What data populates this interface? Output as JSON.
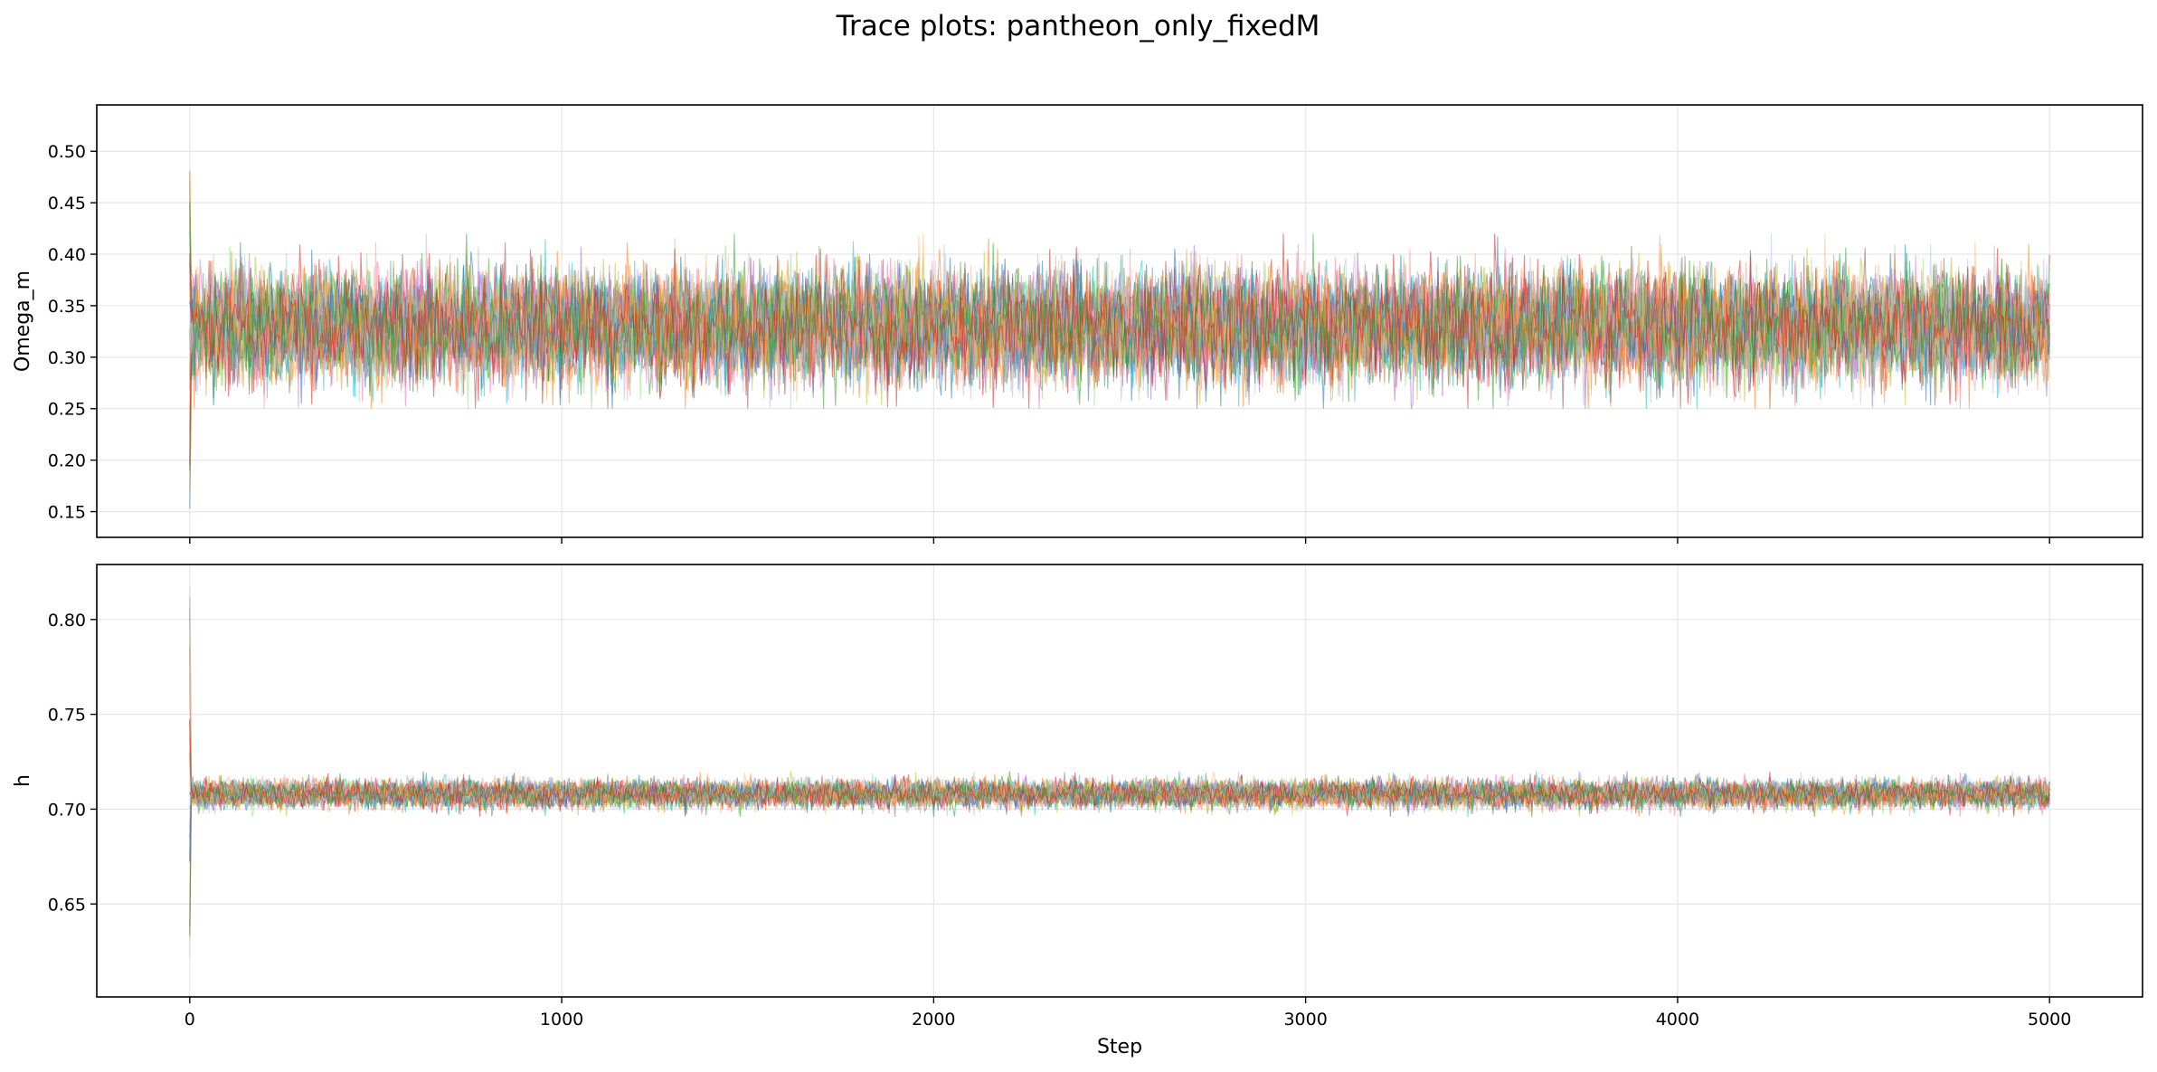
{
  "title": "Trace plots: pantheon_only_fixedM",
  "series_colors": [
    "#1f77b4",
    "#ff7f0e",
    "#2ca02c",
    "#d62728",
    "#9467bd",
    "#8c564b",
    "#e377c2",
    "#17becf",
    "#bcbd22",
    "#aec7e8",
    "#ffbb78",
    "#98df8a",
    "#ff9896",
    "#c5b0d5"
  ],
  "chart_data": [
    {
      "type": "line",
      "ylabel": "Omega_m",
      "xlabel": "",
      "xlim": [
        -250,
        5250
      ],
      "ylim": [
        0.125,
        0.545
      ],
      "xticks": [
        0,
        1000,
        2000,
        3000,
        4000,
        5000
      ],
      "xtick_labels": [
        "",
        "",
        "",
        "",
        "",
        ""
      ],
      "yticks": [
        0.15,
        0.2,
        0.25,
        0.3,
        0.35,
        0.4,
        0.45,
        0.5
      ],
      "ytick_labels": [
        "0.15",
        "0.20",
        "0.25",
        "0.30",
        "0.35",
        "0.40",
        "0.45",
        "0.50"
      ],
      "grid": true,
      "n_chains": 32,
      "n_steps": 5000,
      "chain_mean": 0.33,
      "chain_sd": 0.025,
      "chain_range": [
        0.25,
        0.42
      ],
      "initial_range": [
        0.145,
        0.525
      ]
    },
    {
      "type": "line",
      "ylabel": "h",
      "xlabel": "Step",
      "xlim": [
        -250,
        5250
      ],
      "ylim": [
        0.601,
        0.829
      ],
      "xticks": [
        0,
        1000,
        2000,
        3000,
        4000,
        5000
      ],
      "xtick_labels": [
        "0",
        "1000",
        "2000",
        "3000",
        "4000",
        "5000"
      ],
      "yticks": [
        0.65,
        0.7,
        0.75,
        0.8
      ],
      "ytick_labels": [
        "0.65",
        "0.70",
        "0.75",
        "0.80"
      ],
      "grid": true,
      "n_chains": 32,
      "n_steps": 5000,
      "chain_mean": 0.708,
      "chain_sd": 0.0035,
      "chain_range": [
        0.696,
        0.72
      ],
      "initial_range": [
        0.611,
        0.819
      ]
    }
  ]
}
